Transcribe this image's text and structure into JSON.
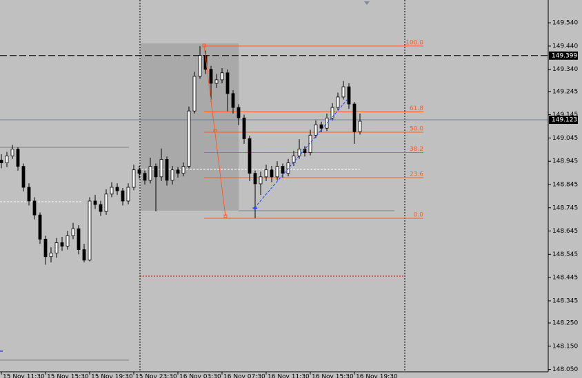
{
  "chart_data": {
    "type": "candlestick",
    "ylim": [
      148.04,
      149.638
    ],
    "yticks": [
      {
        "value": 149.54,
        "label": "149.540"
      },
      {
        "value": 149.44,
        "label": "149.440"
      },
      {
        "value": 149.34,
        "label": "149.340"
      },
      {
        "value": 149.245,
        "label": "149.245"
      },
      {
        "value": 149.145,
        "label": "149.145"
      },
      {
        "value": 149.045,
        "label": "149.045"
      },
      {
        "value": 148.945,
        "label": "148.945"
      },
      {
        "value": 148.845,
        "label": "148.845"
      },
      {
        "value": 148.745,
        "label": "148.745"
      },
      {
        "value": 148.645,
        "label": "148.645"
      },
      {
        "value": 148.545,
        "label": "148.545"
      },
      {
        "value": 148.445,
        "label": "148.445"
      },
      {
        "value": 148.345,
        "label": "148.345"
      },
      {
        "value": 148.25,
        "label": "148.250"
      },
      {
        "value": 148.15,
        "label": "148.150"
      },
      {
        "value": 148.05,
        "label": "148.050"
      }
    ],
    "xlabels": [
      "15 Nov 11:30",
      "15 Nov 15:30",
      "15 Nov 19:30",
      "15 Nov 23:30",
      "16 Nov 03:30",
      "16 Nov 07:30",
      "16 Nov 11:30",
      "16 Nov 15:30",
      "16 Nov 19:30"
    ],
    "price_lines": [
      {
        "value": 149.399,
        "label": "149.399",
        "color": "#000000",
        "style": "dashed"
      },
      {
        "value": 149.123,
        "label": "149.123",
        "color": "#6b7f99",
        "style": "solid"
      }
    ],
    "fibonacci": {
      "high": 149.44,
      "low": 148.7,
      "color": "#ff5a1f",
      "levels": [
        {
          "value": 100,
          "label": "100.0"
        },
        {
          "value": 61.8,
          "label": "61.8"
        },
        {
          "value": 50,
          "label": "50.0"
        },
        {
          "value": 38.2,
          "label": "38.2"
        },
        {
          "value": 23.6,
          "label": "23.6"
        },
        {
          "value": 0,
          "label": "0.0"
        }
      ]
    },
    "bull_color": "#ffffff",
    "bear_color": "#000000",
    "candles": [
      {
        "o": 148.95,
        "h": 148.975,
        "l": 148.915,
        "c": 148.938
      },
      {
        "o": 148.938,
        "h": 148.985,
        "l": 148.92,
        "c": 148.968
      },
      {
        "o": 148.968,
        "h": 149.015,
        "l": 148.955,
        "c": 148.997
      },
      {
        "o": 148.997,
        "h": 149.005,
        "l": 148.905,
        "c": 148.923
      },
      {
        "o": 148.923,
        "h": 148.935,
        "l": 148.815,
        "c": 148.833
      },
      {
        "o": 148.833,
        "h": 148.85,
        "l": 148.755,
        "c": 148.774
      },
      {
        "o": 148.774,
        "h": 148.79,
        "l": 148.695,
        "c": 148.714
      },
      {
        "o": 148.714,
        "h": 148.725,
        "l": 148.59,
        "c": 148.61
      },
      {
        "o": 148.61,
        "h": 148.625,
        "l": 148.5,
        "c": 148.535
      },
      {
        "o": 148.535,
        "h": 148.575,
        "l": 148.51,
        "c": 148.55
      },
      {
        "o": 148.55,
        "h": 148.615,
        "l": 148.53,
        "c": 148.595
      },
      {
        "o": 148.595,
        "h": 148.62,
        "l": 148.56,
        "c": 148.58
      },
      {
        "o": 148.58,
        "h": 148.645,
        "l": 148.565,
        "c": 148.625
      },
      {
        "o": 148.625,
        "h": 148.68,
        "l": 148.61,
        "c": 148.655
      },
      {
        "o": 148.655,
        "h": 148.67,
        "l": 148.545,
        "c": 148.565
      },
      {
        "o": 148.565,
        "h": 148.59,
        "l": 148.51,
        "c": 148.52
      },
      {
        "o": 148.52,
        "h": 148.79,
        "l": 148.515,
        "c": 148.774
      },
      {
        "o": 148.774,
        "h": 148.8,
        "l": 148.74,
        "c": 148.759
      },
      {
        "o": 148.759,
        "h": 148.775,
        "l": 148.71,
        "c": 148.729
      },
      {
        "o": 148.729,
        "h": 148.825,
        "l": 148.715,
        "c": 148.804
      },
      {
        "o": 148.804,
        "h": 148.855,
        "l": 148.79,
        "c": 148.833
      },
      {
        "o": 148.833,
        "h": 148.85,
        "l": 148.8,
        "c": 148.818
      },
      {
        "o": 148.818,
        "h": 148.83,
        "l": 148.755,
        "c": 148.774
      },
      {
        "o": 148.774,
        "h": 148.85,
        "l": 148.76,
        "c": 148.833
      },
      {
        "o": 148.833,
        "h": 148.93,
        "l": 148.82,
        "c": 148.908
      },
      {
        "o": 148.908,
        "h": 148.925,
        "l": 148.87,
        "c": 148.893
      },
      {
        "o": 148.893,
        "h": 148.905,
        "l": 148.845,
        "c": 148.863
      },
      {
        "o": 148.863,
        "h": 148.96,
        "l": 148.85,
        "c": 148.923
      },
      {
        "o": 148.923,
        "h": 148.935,
        "l": 148.73,
        "c": 148.878
      },
      {
        "o": 148.878,
        "h": 149.0,
        "l": 148.86,
        "c": 148.953
      },
      {
        "o": 148.953,
        "h": 148.965,
        "l": 148.84,
        "c": 148.863
      },
      {
        "o": 148.863,
        "h": 148.925,
        "l": 148.845,
        "c": 148.908
      },
      {
        "o": 148.908,
        "h": 148.92,
        "l": 148.875,
        "c": 148.893
      },
      {
        "o": 148.893,
        "h": 148.94,
        "l": 148.88,
        "c": 148.923
      },
      {
        "o": 148.923,
        "h": 149.18,
        "l": 148.915,
        "c": 149.161
      },
      {
        "o": 149.161,
        "h": 149.33,
        "l": 149.15,
        "c": 149.31
      },
      {
        "o": 149.31,
        "h": 149.44,
        "l": 149.3,
        "c": 149.4
      },
      {
        "o": 149.4,
        "h": 149.42,
        "l": 149.32,
        "c": 149.34
      },
      {
        "o": 149.34,
        "h": 149.355,
        "l": 149.2,
        "c": 149.28
      },
      {
        "o": 149.28,
        "h": 149.32,
        "l": 149.26,
        "c": 149.295
      },
      {
        "o": 149.295,
        "h": 149.345,
        "l": 149.28,
        "c": 149.325
      },
      {
        "o": 149.325,
        "h": 149.34,
        "l": 149.16,
        "c": 149.236
      },
      {
        "o": 149.236,
        "h": 149.25,
        "l": 149.15,
        "c": 149.176
      },
      {
        "o": 149.176,
        "h": 149.19,
        "l": 149.1,
        "c": 149.131
      },
      {
        "o": 149.131,
        "h": 149.145,
        "l": 149.02,
        "c": 149.042
      },
      {
        "o": 149.042,
        "h": 149.055,
        "l": 148.86,
        "c": 148.893
      },
      {
        "o": 148.893,
        "h": 148.905,
        "l": 148.7,
        "c": 148.848
      },
      {
        "o": 148.848,
        "h": 148.9,
        "l": 148.8,
        "c": 148.878
      },
      {
        "o": 148.878,
        "h": 148.93,
        "l": 148.86,
        "c": 148.908
      },
      {
        "o": 148.908,
        "h": 148.925,
        "l": 148.855,
        "c": 148.878
      },
      {
        "o": 148.878,
        "h": 148.945,
        "l": 148.865,
        "c": 148.923
      },
      {
        "o": 148.923,
        "h": 148.935,
        "l": 148.875,
        "c": 148.893
      },
      {
        "o": 148.893,
        "h": 148.955,
        "l": 148.88,
        "c": 148.938
      },
      {
        "o": 148.938,
        "h": 148.99,
        "l": 148.925,
        "c": 148.968
      },
      {
        "o": 148.968,
        "h": 149.04,
        "l": 148.955,
        "c": 148.997
      },
      {
        "o": 148.997,
        "h": 149.01,
        "l": 148.965,
        "c": 148.982
      },
      {
        "o": 148.982,
        "h": 149.08,
        "l": 148.97,
        "c": 149.057
      },
      {
        "o": 149.057,
        "h": 149.12,
        "l": 149.045,
        "c": 149.102
      },
      {
        "o": 149.102,
        "h": 149.115,
        "l": 149.07,
        "c": 149.087
      },
      {
        "o": 149.087,
        "h": 149.15,
        "l": 149.075,
        "c": 149.131
      },
      {
        "o": 149.131,
        "h": 149.195,
        "l": 149.12,
        "c": 149.176
      },
      {
        "o": 149.176,
        "h": 149.24,
        "l": 149.165,
        "c": 149.221
      },
      {
        "o": 149.221,
        "h": 149.29,
        "l": 149.21,
        "c": 149.265
      },
      {
        "o": 149.265,
        "h": 149.28,
        "l": 149.17,
        "c": 149.191
      },
      {
        "o": 149.191,
        "h": 149.2,
        "l": 149.02,
        "c": 149.072
      },
      {
        "o": 149.072,
        "h": 149.15,
        "l": 149.06,
        "c": 149.117
      }
    ]
  }
}
